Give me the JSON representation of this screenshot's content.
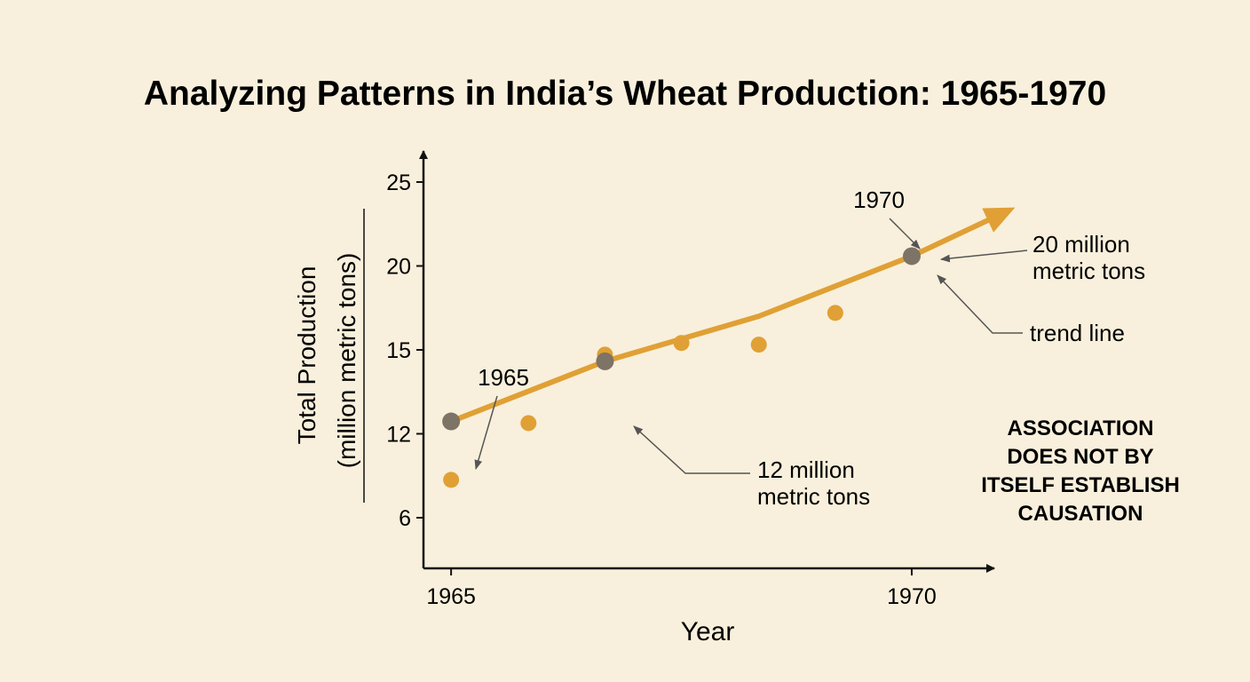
{
  "chart_data": {
    "type": "scatter",
    "title": "Analyzing Patterns in India’s Wheat Production: 1965-1970",
    "xlabel": "Year",
    "ylabel_line1": "Total Production",
    "ylabel_line2": "(million metric tons)",
    "xlim": [
      1964.7,
      1970.8
    ],
    "ylim": [
      1.5,
      26.5
    ],
    "y_tick_labels": [
      "6",
      "12",
      "15",
      "20",
      "25"
    ],
    "x_tick_labels": [
      "1965",
      "1970"
    ],
    "x_tick_values": [
      1965,
      1970
    ],
    "grid": false,
    "colors": {
      "points": "#e0a035",
      "trend": "#e0a035",
      "highlight": "#7d7366",
      "background": "#f8f0dc",
      "text": "#111111"
    },
    "scatter_points": [
      {
        "x": 1965.0,
        "y": 6.8
      },
      {
        "x": 1965.84,
        "y": 10.2
      },
      {
        "x": 1966.67,
        "y": 14.3
      },
      {
        "x": 1967.5,
        "y": 15.0
      },
      {
        "x": 1968.34,
        "y": 14.9
      },
      {
        "x": 1969.17,
        "y": 16.8
      }
    ],
    "trend_line": {
      "points": [
        {
          "x": 1965.0,
          "y": 10.3
        },
        {
          "x": 1966.67,
          "y": 13.9
        },
        {
          "x": 1968.34,
          "y": 16.6
        },
        {
          "x": 1970.0,
          "y": 20.2
        },
        {
          "x": 1971.0,
          "y": 22.8
        }
      ]
    },
    "highlights": [
      {
        "x": 1965.0,
        "y": 10.3
      },
      {
        "x": 1966.67,
        "y": 13.9
      },
      {
        "x": 1970.0,
        "y": 20.2
      }
    ],
    "annotations": {
      "label_1965": "1965",
      "label_1970": "1970",
      "mid_line1": "12 million",
      "mid_line2": "metric tons",
      "top_line1": "20 million",
      "top_line2": "metric tons",
      "trend": "trend line"
    },
    "note_lines": [
      "ASSOCIATION",
      "DOES NOT BY",
      "ITSELF ESTABLISH",
      "CAUSATION"
    ]
  }
}
